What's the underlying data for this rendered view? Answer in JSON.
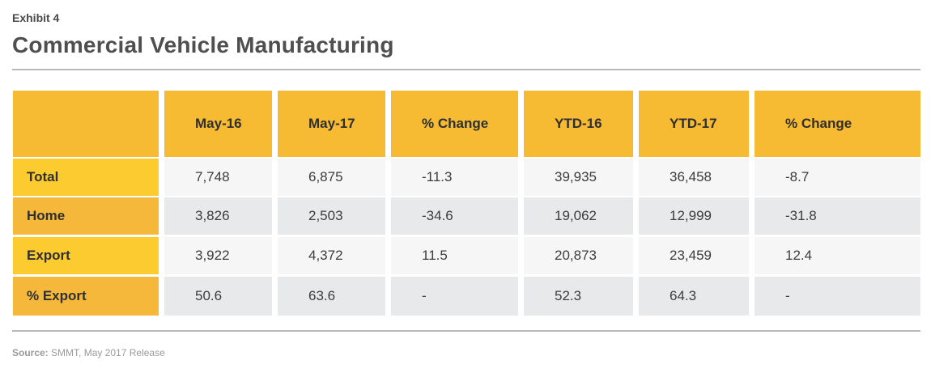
{
  "exhibit_label": "Exhibit 4",
  "title": "Commercial Vehicle Manufacturing",
  "table": {
    "columns": [
      "",
      "May-16",
      "May-17",
      "% Change",
      "YTD-16",
      "YTD-17",
      "% Change"
    ],
    "rows": [
      {
        "label": "Total",
        "values": [
          "7,748",
          "6,875",
          "-11.3",
          "39,935",
          "36,458",
          "-8.7"
        ]
      },
      {
        "label": "Home",
        "values": [
          "3,826",
          "2,503",
          "-34.6",
          "19,062",
          "12,999",
          "-31.8"
        ]
      },
      {
        "label": "Export",
        "values": [
          "3,922",
          "4,372",
          "11.5",
          "20,873",
          "23,459",
          "12.4"
        ]
      },
      {
        "label": "% Export",
        "values": [
          "50.6",
          "63.6",
          "-",
          "52.3",
          "64.3",
          "-"
        ]
      }
    ]
  },
  "source": {
    "prefix": "Source:",
    "text": "SMMT, May 2017 Release"
  },
  "colors": {
    "header_fill": "#f6bb32",
    "label_fill_light": "#fbcb30",
    "label_fill_dark": "#f5b83b",
    "row_fill_light": "#f6f6f6",
    "row_fill_dark": "#e8e9ea"
  }
}
